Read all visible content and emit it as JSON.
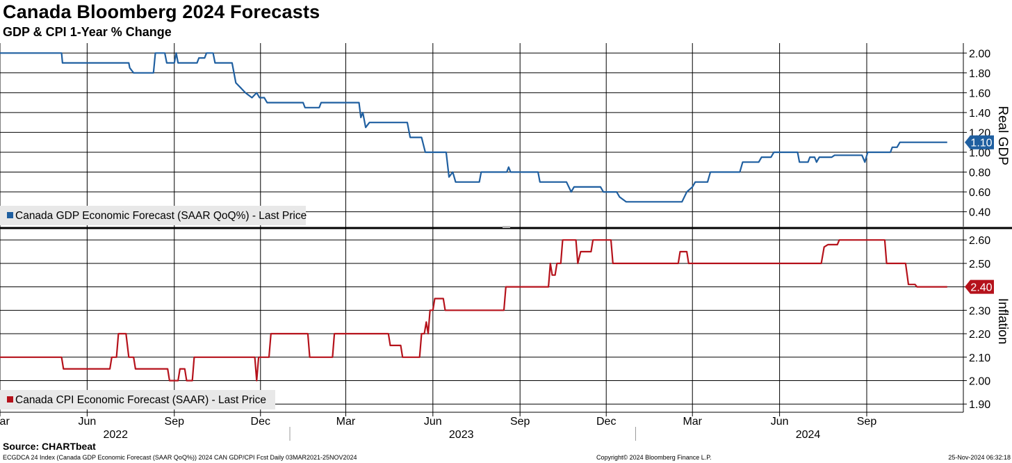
{
  "header": {
    "title": "Canada Bloomberg 2024 Forecasts",
    "subtitle": "GDP & CPI 1-Year % Change"
  },
  "footer": {
    "source": "Source: CHARTbeat",
    "left_note": "ECGDCA 24 Index (Canada GDP Economic Forecast (SAAR QoQ%)) 2024 CAN GDP/CPI Fcst  Daily 03MAR2021-25NOV2024",
    "copyright": "Copyright© 2024 Bloomberg Finance L.P.",
    "timestamp": "25-Nov-2024 06:32:18"
  },
  "x_axis": {
    "month_ticks": [
      {
        "label": "Mar",
        "date": "2022-03-01"
      },
      {
        "label": "Jun",
        "date": "2022-06-01"
      },
      {
        "label": "Sep",
        "date": "2022-09-01"
      },
      {
        "label": "Dec",
        "date": "2022-12-01"
      },
      {
        "label": "Mar",
        "date": "2023-03-01"
      },
      {
        "label": "Jun",
        "date": "2023-06-01"
      },
      {
        "label": "Sep",
        "date": "2023-09-01"
      },
      {
        "label": "Dec",
        "date": "2023-12-01"
      },
      {
        "label": "Mar",
        "date": "2024-03-01"
      },
      {
        "label": "Jun",
        "date": "2024-06-01"
      },
      {
        "label": "Sep",
        "date": "2024-09-01"
      }
    ],
    "year_labels": [
      {
        "label": "2022",
        "center": "2022-07-01"
      },
      {
        "label": "2023",
        "center": "2023-07-01"
      },
      {
        "label": "2024",
        "center": "2024-07-01"
      }
    ],
    "year_separators": [
      "2023-01-01",
      "2024-01-01"
    ]
  },
  "chart_data": [
    {
      "type": "line",
      "panel": "top",
      "axis_title": "Real GDP",
      "ylim": [
        0.25,
        2.1
      ],
      "yticks": [
        "2.00",
        "1.80",
        "1.60",
        "1.40",
        "1.20",
        "1.00",
        "0.80",
        "0.60",
        "0.40"
      ],
      "ytick_values": [
        2.0,
        1.8,
        1.6,
        1.4,
        1.2,
        1.0,
        0.8,
        0.6,
        0.4
      ],
      "grid": true,
      "legend_position": "bottom-left",
      "last_value_label": "1.10",
      "series": [
        {
          "name": "Canada GDP Economic Forecast (SAAR QoQ%) - Last Price",
          "color": "#1f5fa0",
          "points": [
            [
              "2022-03-01",
              2.0
            ],
            [
              "2022-05-05",
              2.0
            ],
            [
              "2022-05-06",
              1.9
            ],
            [
              "2022-07-15",
              1.9
            ],
            [
              "2022-07-16",
              1.85
            ],
            [
              "2022-07-20",
              1.8
            ],
            [
              "2022-08-10",
              1.8
            ],
            [
              "2022-08-12",
              2.0
            ],
            [
              "2022-08-22",
              2.0
            ],
            [
              "2022-08-24",
              1.9
            ],
            [
              "2022-09-01",
              1.9
            ],
            [
              "2022-09-03",
              2.0
            ],
            [
              "2022-09-05",
              1.9
            ],
            [
              "2022-09-25",
              1.9
            ],
            [
              "2022-09-27",
              1.95
            ],
            [
              "2022-10-03",
              1.95
            ],
            [
              "2022-10-05",
              2.0
            ],
            [
              "2022-10-12",
              2.0
            ],
            [
              "2022-10-14",
              1.9
            ],
            [
              "2022-11-01",
              1.9
            ],
            [
              "2022-11-05",
              1.7
            ],
            [
              "2022-11-10",
              1.65
            ],
            [
              "2022-11-15",
              1.6
            ],
            [
              "2022-11-22",
              1.55
            ],
            [
              "2022-11-27",
              1.6
            ],
            [
              "2022-11-30",
              1.55
            ],
            [
              "2022-12-05",
              1.55
            ],
            [
              "2022-12-08",
              1.5
            ],
            [
              "2023-01-15",
              1.5
            ],
            [
              "2023-01-17",
              1.45
            ],
            [
              "2023-02-01",
              1.45
            ],
            [
              "2023-02-03",
              1.5
            ],
            [
              "2023-03-15",
              1.5
            ],
            [
              "2023-03-17",
              1.35
            ],
            [
              "2023-03-19",
              1.4
            ],
            [
              "2023-03-22",
              1.25
            ],
            [
              "2023-03-26",
              1.3
            ],
            [
              "2023-05-05",
              1.3
            ],
            [
              "2023-05-08",
              1.15
            ],
            [
              "2023-05-20",
              1.15
            ],
            [
              "2023-05-24",
              1.0
            ],
            [
              "2023-06-15",
              1.0
            ],
            [
              "2023-06-18",
              0.75
            ],
            [
              "2023-06-22",
              0.8
            ],
            [
              "2023-06-25",
              0.7
            ],
            [
              "2023-07-20",
              0.7
            ],
            [
              "2023-07-22",
              0.8
            ],
            [
              "2023-08-18",
              0.8
            ],
            [
              "2023-08-20",
              0.85
            ],
            [
              "2023-08-22",
              0.8
            ],
            [
              "2023-09-20",
              0.8
            ],
            [
              "2023-09-22",
              0.7
            ],
            [
              "2023-10-20",
              0.7
            ],
            [
              "2023-10-25",
              0.6
            ],
            [
              "2023-10-28",
              0.65
            ],
            [
              "2023-11-25",
              0.65
            ],
            [
              "2023-11-28",
              0.6
            ],
            [
              "2023-12-12",
              0.6
            ],
            [
              "2023-12-15",
              0.55
            ],
            [
              "2023-12-22",
              0.5
            ],
            [
              "2024-02-19",
              0.5
            ],
            [
              "2024-02-24",
              0.6
            ],
            [
              "2024-03-01",
              0.65
            ],
            [
              "2024-03-04",
              0.7
            ],
            [
              "2024-03-17",
              0.7
            ],
            [
              "2024-03-20",
              0.8
            ],
            [
              "2024-04-20",
              0.8
            ],
            [
              "2024-04-23",
              0.9
            ],
            [
              "2024-05-10",
              0.9
            ],
            [
              "2024-05-13",
              0.95
            ],
            [
              "2024-05-23",
              0.95
            ],
            [
              "2024-05-26",
              1.0
            ],
            [
              "2024-06-20",
              1.0
            ],
            [
              "2024-06-22",
              0.9
            ],
            [
              "2024-07-01",
              0.9
            ],
            [
              "2024-07-03",
              0.95
            ],
            [
              "2024-07-08",
              0.95
            ],
            [
              "2024-07-10",
              0.9
            ],
            [
              "2024-07-13",
              0.95
            ],
            [
              "2024-07-26",
              0.95
            ],
            [
              "2024-07-29",
              0.97
            ],
            [
              "2024-08-27",
              0.97
            ],
            [
              "2024-08-30",
              0.9
            ],
            [
              "2024-09-02",
              1.0
            ],
            [
              "2024-09-26",
              1.0
            ],
            [
              "2024-09-28",
              1.05
            ],
            [
              "2024-10-03",
              1.05
            ],
            [
              "2024-10-06",
              1.1
            ],
            [
              "2024-11-25",
              1.1
            ]
          ]
        }
      ]
    },
    {
      "type": "line",
      "panel": "bottom",
      "axis_title": "Inflation",
      "ylim": [
        1.865,
        2.645
      ],
      "yticks": [
        "2.60",
        "2.50",
        "2.40",
        "2.30",
        "2.20",
        "2.10",
        "2.00",
        "1.90"
      ],
      "ytick_values": [
        2.6,
        2.5,
        2.4,
        2.3,
        2.2,
        2.1,
        2.0,
        1.9
      ],
      "grid": true,
      "legend_position": "bottom-left",
      "last_value_label": "2.40",
      "series": [
        {
          "name": "Canada CPI Economic Forecast (SAAR) - Last Price",
          "color": "#b5121b",
          "points": [
            [
              "2022-03-01",
              2.1
            ],
            [
              "2022-05-05",
              2.1
            ],
            [
              "2022-05-07",
              2.05
            ],
            [
              "2022-06-25",
              2.05
            ],
            [
              "2022-06-27",
              2.1
            ],
            [
              "2022-07-02",
              2.1
            ],
            [
              "2022-07-04",
              2.2
            ],
            [
              "2022-07-12",
              2.2
            ],
            [
              "2022-07-15",
              2.1
            ],
            [
              "2022-07-20",
              2.1
            ],
            [
              "2022-07-22",
              2.05
            ],
            [
              "2022-08-25",
              2.05
            ],
            [
              "2022-08-27",
              2.0
            ],
            [
              "2022-09-05",
              2.0
            ],
            [
              "2022-09-07",
              2.05
            ],
            [
              "2022-09-12",
              2.05
            ],
            [
              "2022-09-14",
              2.0
            ],
            [
              "2022-09-20",
              2.0
            ],
            [
              "2022-09-22",
              2.1
            ],
            [
              "2022-11-25",
              2.1
            ],
            [
              "2022-11-27",
              2.0
            ],
            [
              "2022-11-29",
              2.1
            ],
            [
              "2022-12-10",
              2.1
            ],
            [
              "2022-12-12",
              2.2
            ],
            [
              "2023-01-20",
              2.2
            ],
            [
              "2023-01-22",
              2.1
            ],
            [
              "2023-02-15",
              2.1
            ],
            [
              "2023-02-17",
              2.2
            ],
            [
              "2023-04-15",
              2.2
            ],
            [
              "2023-04-17",
              2.15
            ],
            [
              "2023-04-28",
              2.15
            ],
            [
              "2023-04-30",
              2.1
            ],
            [
              "2023-05-18",
              2.1
            ],
            [
              "2023-05-20",
              2.2
            ],
            [
              "2023-05-23",
              2.2
            ],
            [
              "2023-05-25",
              2.25
            ],
            [
              "2023-05-27",
              2.2
            ],
            [
              "2023-05-29",
              2.3
            ],
            [
              "2023-06-01",
              2.3
            ],
            [
              "2023-06-03",
              2.35
            ],
            [
              "2023-06-12",
              2.35
            ],
            [
              "2023-06-14",
              2.3
            ],
            [
              "2023-08-15",
              2.3
            ],
            [
              "2023-08-17",
              2.4
            ],
            [
              "2023-10-01",
              2.4
            ],
            [
              "2023-10-03",
              2.5
            ],
            [
              "2023-10-05",
              2.45
            ],
            [
              "2023-10-08",
              2.45
            ],
            [
              "2023-10-10",
              2.5
            ],
            [
              "2023-10-14",
              2.5
            ],
            [
              "2023-10-16",
              2.6
            ],
            [
              "2023-10-30",
              2.6
            ],
            [
              "2023-11-01",
              2.5
            ],
            [
              "2023-11-04",
              2.55
            ],
            [
              "2023-11-15",
              2.55
            ],
            [
              "2023-11-17",
              2.6
            ],
            [
              "2023-12-06",
              2.6
            ],
            [
              "2023-12-08",
              2.5
            ],
            [
              "2024-02-15",
              2.5
            ],
            [
              "2024-02-17",
              2.55
            ],
            [
              "2024-02-24",
              2.55
            ],
            [
              "2024-02-26",
              2.5
            ],
            [
              "2024-07-15",
              2.5
            ],
            [
              "2024-07-18",
              2.57
            ],
            [
              "2024-07-22",
              2.58
            ],
            [
              "2024-08-01",
              2.58
            ],
            [
              "2024-08-03",
              2.6
            ],
            [
              "2024-09-20",
              2.6
            ],
            [
              "2024-09-22",
              2.5
            ],
            [
              "2024-10-12",
              2.5
            ],
            [
              "2024-10-15",
              2.41
            ],
            [
              "2024-10-22",
              2.41
            ],
            [
              "2024-10-24",
              2.4
            ],
            [
              "2024-11-25",
              2.4
            ]
          ]
        }
      ]
    }
  ]
}
